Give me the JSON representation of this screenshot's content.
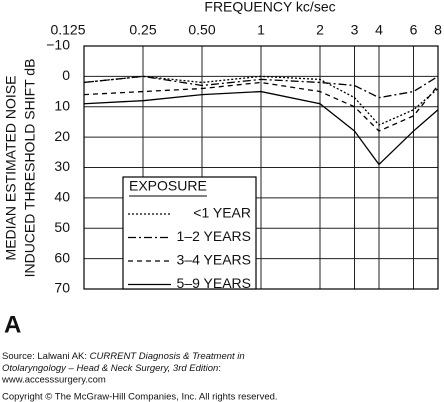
{
  "chart_data": {
    "type": "line",
    "xlabel": "FREQUENCY kc/sec",
    "ylabel": [
      "MEDIAN ESTIMATED NOISE",
      "INDUCED THRESHOLD SHIFT dB"
    ],
    "x": [
      0.125,
      0.25,
      0.5,
      1,
      2,
      3,
      4,
      6,
      8
    ],
    "xlim": [
      0.125,
      8
    ],
    "xscale": "log",
    "xticks": [
      0.125,
      0.25,
      {
        "value": 0.5,
        "label": "0.50"
      },
      1,
      2,
      3,
      4,
      6,
      8
    ],
    "ylim": [
      -10,
      70
    ],
    "yinverted": true,
    "yticks": [
      {
        "value": -10,
        "label": "−10"
      },
      0,
      10,
      20,
      30,
      40,
      50,
      60,
      70
    ],
    "grid": true,
    "legend_title": "EXPOSURE",
    "series": [
      {
        "name": "<1 YEAR",
        "color": "#000000",
        "dash": "2,2",
        "values": [
          2,
          0,
          2,
          0,
          1,
          7,
          16,
          11,
          4
        ]
      },
      {
        "name": "1–2 YEARS",
        "color": "#000000",
        "dash": "8,3,2,3",
        "values": [
          2,
          0,
          3,
          1,
          2,
          3,
          7,
          5,
          0
        ]
      },
      {
        "name": "3–4 YEARS",
        "color": "#000000",
        "dash": "5,4",
        "values": [
          6,
          5,
          4,
          2,
          5,
          10,
          18,
          13,
          3
        ]
      },
      {
        "name": "5–9 YEARS",
        "color": "#000000",
        "dash": "none",
        "values": [
          9,
          8,
          6,
          5,
          9,
          18,
          29,
          18,
          11
        ]
      }
    ],
    "panel_label": "A"
  },
  "footer": {
    "source_prefix": "Source: Lalwani AK: ",
    "book_line1": "CURRENT Diagnosis & Treatment in",
    "book_line2": "Otolaryngology – Head & Neck Surgery, 3rd Edition",
    "book_line2_suffix": ":",
    "website": "www.accesssurgery.com",
    "copyright": "Copyright © The McGraw-Hill Companies, Inc. All rights reserved."
  }
}
